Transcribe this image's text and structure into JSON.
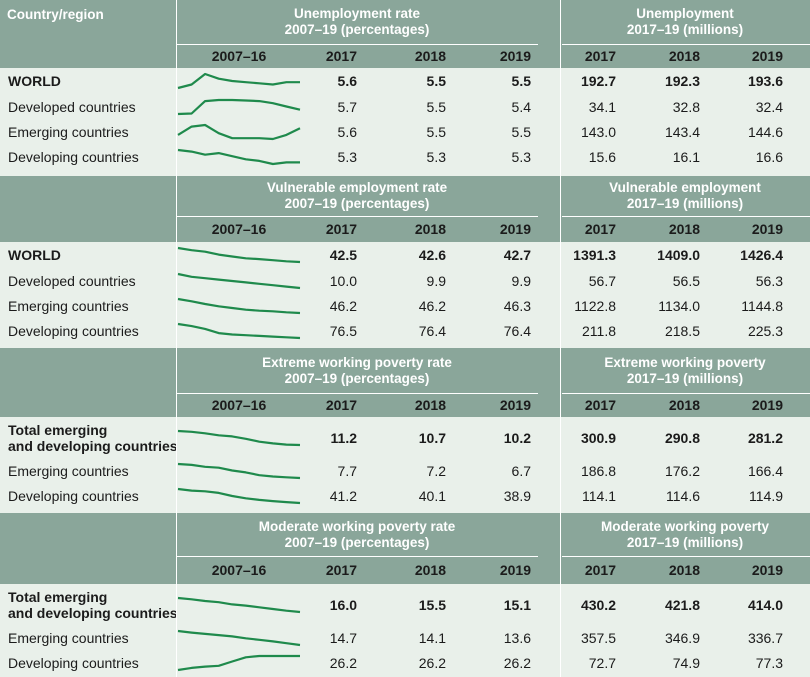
{
  "corner_label": "Country/region",
  "period_label": "2007–16",
  "years": [
    "2017",
    "2018",
    "2019"
  ],
  "colors": {
    "header_bg": "#8aa69a",
    "body_bg": "#e9f0ea",
    "spark": "#1f8a4c"
  },
  "sections": [
    {
      "rate_title": [
        "Unemployment rate",
        "2007–19 (percentages)"
      ],
      "count_title": [
        "Unemployment",
        "2017–19 (millions)"
      ],
      "rows": [
        {
          "label": [
            "WORLD"
          ],
          "bold": true,
          "rate": [
            "5.6",
            "5.5",
            "5.5"
          ],
          "count": [
            "192.7",
            "192.3",
            "193.6"
          ],
          "trend": [
            5.3,
            5.45,
            5.9,
            5.7,
            5.6,
            5.55,
            5.5,
            5.45,
            5.55,
            5.55
          ]
        },
        {
          "label": [
            "Developed countries"
          ],
          "bold": false,
          "rate": [
            "5.7",
            "5.5",
            "5.4"
          ],
          "count": [
            "34.1",
            "32.8",
            "32.4"
          ],
          "trend": [
            5.6,
            5.7,
            8.0,
            8.2,
            8.2,
            8.1,
            8.0,
            7.6,
            7.0,
            6.4
          ]
        },
        {
          "label": [
            "Emerging countries"
          ],
          "bold": false,
          "rate": [
            "5.6",
            "5.5",
            "5.5"
          ],
          "count": [
            "143.0",
            "143.4",
            "144.6"
          ],
          "trend": [
            5.5,
            6.0,
            6.1,
            5.6,
            5.3,
            5.3,
            5.3,
            5.25,
            5.5,
            5.9
          ]
        },
        {
          "label": [
            "Developing countries"
          ],
          "bold": false,
          "rate": [
            "5.3",
            "5.3",
            "5.3"
          ],
          "count": [
            "15.6",
            "16.1",
            "16.6"
          ],
          "trend": [
            6.2,
            6.1,
            5.9,
            6.0,
            5.8,
            5.6,
            5.5,
            5.3,
            5.4,
            5.4
          ]
        }
      ]
    },
    {
      "rate_title": [
        "Vulnerable employment rate",
        "2007–19 (percentages)"
      ],
      "count_title": [
        "Vulnerable employment",
        "2017–19 (millions)"
      ],
      "rows": [
        {
          "label": [
            "WORLD"
          ],
          "bold": true,
          "rate": [
            "42.5",
            "42.6",
            "42.7"
          ],
          "count": [
            "1391.3",
            "1409.0",
            "1426.4"
          ],
          "trend": [
            46.3,
            45.7,
            45.3,
            44.5,
            44.0,
            43.5,
            43.3,
            43.0,
            42.7,
            42.5
          ]
        },
        {
          "label": [
            "Developed countries"
          ],
          "bold": false,
          "rate": [
            "10.0",
            "9.9",
            "9.9"
          ],
          "count": [
            "56.7",
            "56.5",
            "56.3"
          ],
          "trend": [
            11.0,
            10.8,
            10.7,
            10.6,
            10.5,
            10.4,
            10.3,
            10.2,
            10.1,
            10.0
          ]
        },
        {
          "label": [
            "Emerging countries"
          ],
          "bold": false,
          "rate": [
            "46.2",
            "46.2",
            "46.3"
          ],
          "count": [
            "1122.8",
            "1134.0",
            "1144.8"
          ],
          "trend": [
            50.5,
            49.8,
            49.0,
            48.3,
            47.8,
            47.3,
            47.0,
            46.8,
            46.5,
            46.3
          ]
        },
        {
          "label": [
            "Developing countries"
          ],
          "bold": false,
          "rate": [
            "76.5",
            "76.4",
            "76.4"
          ],
          "count": [
            "211.8",
            "218.5",
            "225.3"
          ],
          "trend": [
            78.5,
            78.2,
            77.8,
            77.2,
            77.0,
            76.9,
            76.8,
            76.7,
            76.6,
            76.5
          ]
        }
      ]
    },
    {
      "rate_title": [
        "Extreme working poverty rate",
        "2007–19 (percentages)"
      ],
      "count_title": [
        "Extreme working poverty",
        "2017–19 (millions)"
      ],
      "rows": [
        {
          "label": [
            "Total emerging",
            "and developing countries"
          ],
          "bold": true,
          "rate": [
            "11.2",
            "10.7",
            "10.2"
          ],
          "count": [
            "300.9",
            "290.8",
            "281.2"
          ],
          "trend": [
            19.0,
            18.6,
            17.8,
            16.8,
            16.2,
            15.0,
            13.5,
            12.6,
            12.0,
            11.8
          ]
        },
        {
          "label": [
            "Emerging countries"
          ],
          "bold": false,
          "rate": [
            "7.7",
            "7.2",
            "6.7"
          ],
          "count": [
            "186.8",
            "176.2",
            "166.4"
          ],
          "trend": [
            15.5,
            15.0,
            14.0,
            13.5,
            12.0,
            11.0,
            9.5,
            8.8,
            8.4,
            8.0
          ]
        },
        {
          "label": [
            "Developing countries"
          ],
          "bold": false,
          "rate": [
            "41.2",
            "40.1",
            "38.9"
          ],
          "count": [
            "114.1",
            "114.6",
            "114.9"
          ],
          "trend": [
            51.0,
            50.0,
            49.5,
            48.5,
            46.5,
            45.0,
            44.0,
            43.2,
            42.6,
            42.0
          ]
        }
      ]
    },
    {
      "rate_title": [
        "Moderate working poverty rate",
        "2007–19 (percentages)"
      ],
      "count_title": [
        "Moderate working poverty",
        "2017–19 (millions)"
      ],
      "rows": [
        {
          "label": [
            "Total emerging",
            "and developing countries"
          ],
          "bold": true,
          "rate": [
            "16.0",
            "15.5",
            "15.1"
          ],
          "count": [
            "430.2",
            "421.8",
            "414.0"
          ],
          "trend": [
            19.5,
            19.2,
            18.8,
            18.5,
            18.0,
            17.7,
            17.3,
            16.9,
            16.5,
            16.2
          ]
        },
        {
          "label": [
            "Emerging countries"
          ],
          "bold": false,
          "rate": [
            "14.7",
            "14.1",
            "13.6"
          ],
          "count": [
            "357.5",
            "346.9",
            "336.7"
          ],
          "trend": [
            21.0,
            20.4,
            19.9,
            19.4,
            18.9,
            18.2,
            17.6,
            17.0,
            16.3,
            15.6
          ]
        },
        {
          "label": [
            "Developing countries"
          ],
          "bold": false,
          "rate": [
            "26.2",
            "26.2",
            "26.2"
          ],
          "count": [
            "72.7",
            "74.9",
            "77.3"
          ],
          "trend": [
            23.0,
            23.5,
            23.8,
            24.0,
            25.0,
            26.0,
            26.3,
            26.3,
            26.3,
            26.3
          ]
        }
      ]
    }
  ]
}
